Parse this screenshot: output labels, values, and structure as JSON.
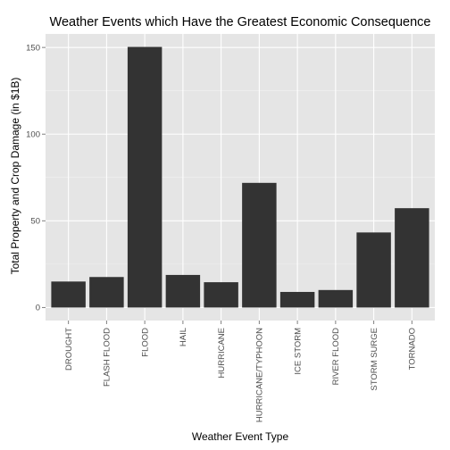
{
  "chart_data": {
    "type": "bar",
    "title": "Weather Events which Have the Greatest Economic Consequence",
    "xlabel": "Weather Event Type",
    "ylabel": "Total Property and Crop Damage (in $1B)",
    "categories": [
      "DROUGHT",
      "FLASH FLOOD",
      "FLOOD",
      "HAIL",
      "HURRICANE",
      "HURRICANE/TYPHOON",
      "ICE STORM",
      "RIVER FLOOD",
      "STORM SURGE",
      "TORNADO"
    ],
    "values": [
      15.0,
      17.6,
      150.3,
      18.8,
      14.6,
      71.9,
      9.0,
      10.1,
      43.3,
      57.3
    ],
    "ylim": [
      -7.5,
      157.8
    ],
    "yticks": [
      0,
      50,
      100,
      150
    ],
    "ytick_labels": [
      "0",
      "50",
      "100",
      "150"
    ],
    "grid": true,
    "legend": "none",
    "colors": {
      "panel_background": "#e5e5e5",
      "grid_major": "#ffffff",
      "grid_minor": "#f2f2f2",
      "bar_fill": "#333333",
      "tick_label": "#4d4d4d",
      "tick_mark": "#7f7f7f"
    }
  }
}
